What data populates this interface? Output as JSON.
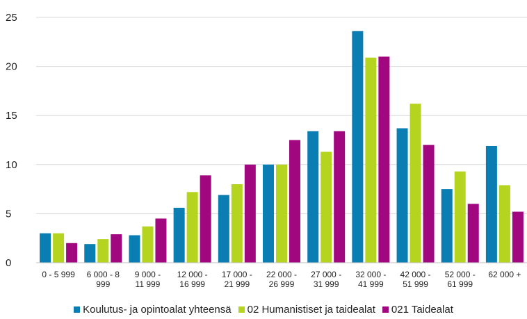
{
  "chart_data": {
    "type": "bar",
    "categories": [
      [
        "0 - 5 999"
      ],
      [
        "6 000 - 8",
        "999"
      ],
      [
        "9 000 -",
        "11 999"
      ],
      [
        "12 000 -",
        "16 999"
      ],
      [
        "17 000 -",
        "21 999"
      ],
      [
        "22 000 -",
        "26 999"
      ],
      [
        "27 000 -",
        "31 999"
      ],
      [
        "32 000 -",
        "41 999"
      ],
      [
        "42 000 -",
        "51 999"
      ],
      [
        "52 000 -",
        "61 999"
      ],
      [
        "62 000 +"
      ]
    ],
    "series": [
      {
        "name": "Koulutus- ja opintoalat yhteensä",
        "color": "#0a7db3",
        "values": [
          3.0,
          1.9,
          2.8,
          5.6,
          6.9,
          10.0,
          13.4,
          23.6,
          13.7,
          7.5,
          11.9
        ]
      },
      {
        "name": "02 Humanistiset ja taidealat",
        "color": "#b5d41f",
        "values": [
          3.0,
          2.4,
          3.7,
          7.2,
          8.0,
          10.0,
          11.3,
          20.9,
          16.2,
          9.3,
          7.9
        ]
      },
      {
        "name": "021 Taidealat",
        "color": "#a1087f",
        "values": [
          2.0,
          2.9,
          4.5,
          8.9,
          10.0,
          12.5,
          13.4,
          21.0,
          12.0,
          6.0,
          5.2
        ]
      }
    ],
    "ylim": [
      0,
      25
    ],
    "yticks": [
      "0",
      "5",
      "10",
      "15",
      "20",
      "25"
    ],
    "grid": true,
    "legend_position": "bottom",
    "title": "",
    "xlabel": "",
    "ylabel": ""
  }
}
